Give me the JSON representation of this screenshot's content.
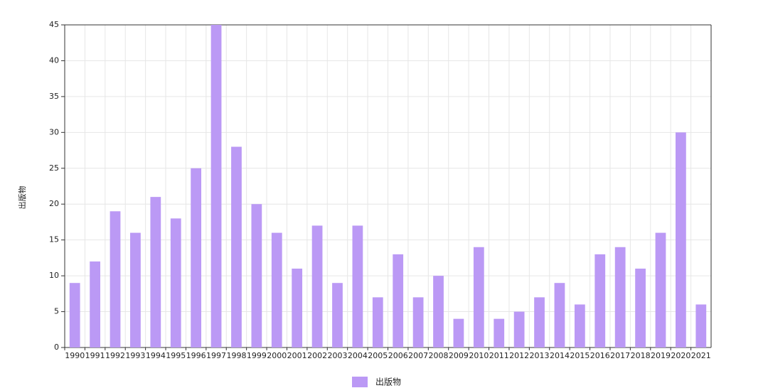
{
  "chart_data": {
    "type": "bar",
    "y_label": "出版物",
    "categories": [
      "1990",
      "1991",
      "1992",
      "1993",
      "1994",
      "1995",
      "1996",
      "1997",
      "1998",
      "1999",
      "2000",
      "2001",
      "2002",
      "2003",
      "2004",
      "2005",
      "2006",
      "2007",
      "2008",
      "2009",
      "2010",
      "2011",
      "2012",
      "2013",
      "2014",
      "2015",
      "2016",
      "2017",
      "2018",
      "2019",
      "2020",
      "2021"
    ],
    "series": [
      {
        "name": "出版物",
        "color": "#bb99f5",
        "values": [
          9,
          12,
          19,
          16,
          21,
          18,
          25,
          45,
          28,
          20,
          16,
          11,
          17,
          9,
          17,
          7,
          13,
          7,
          10,
          4,
          14,
          4,
          5,
          7,
          9,
          6,
          13,
          14,
          11,
          16,
          30,
          6
        ]
      }
    ],
    "ylim": [
      0,
      45
    ],
    "yticks": [
      0,
      5,
      10,
      15,
      20,
      25,
      30,
      35,
      40,
      45
    ],
    "grid": true
  }
}
